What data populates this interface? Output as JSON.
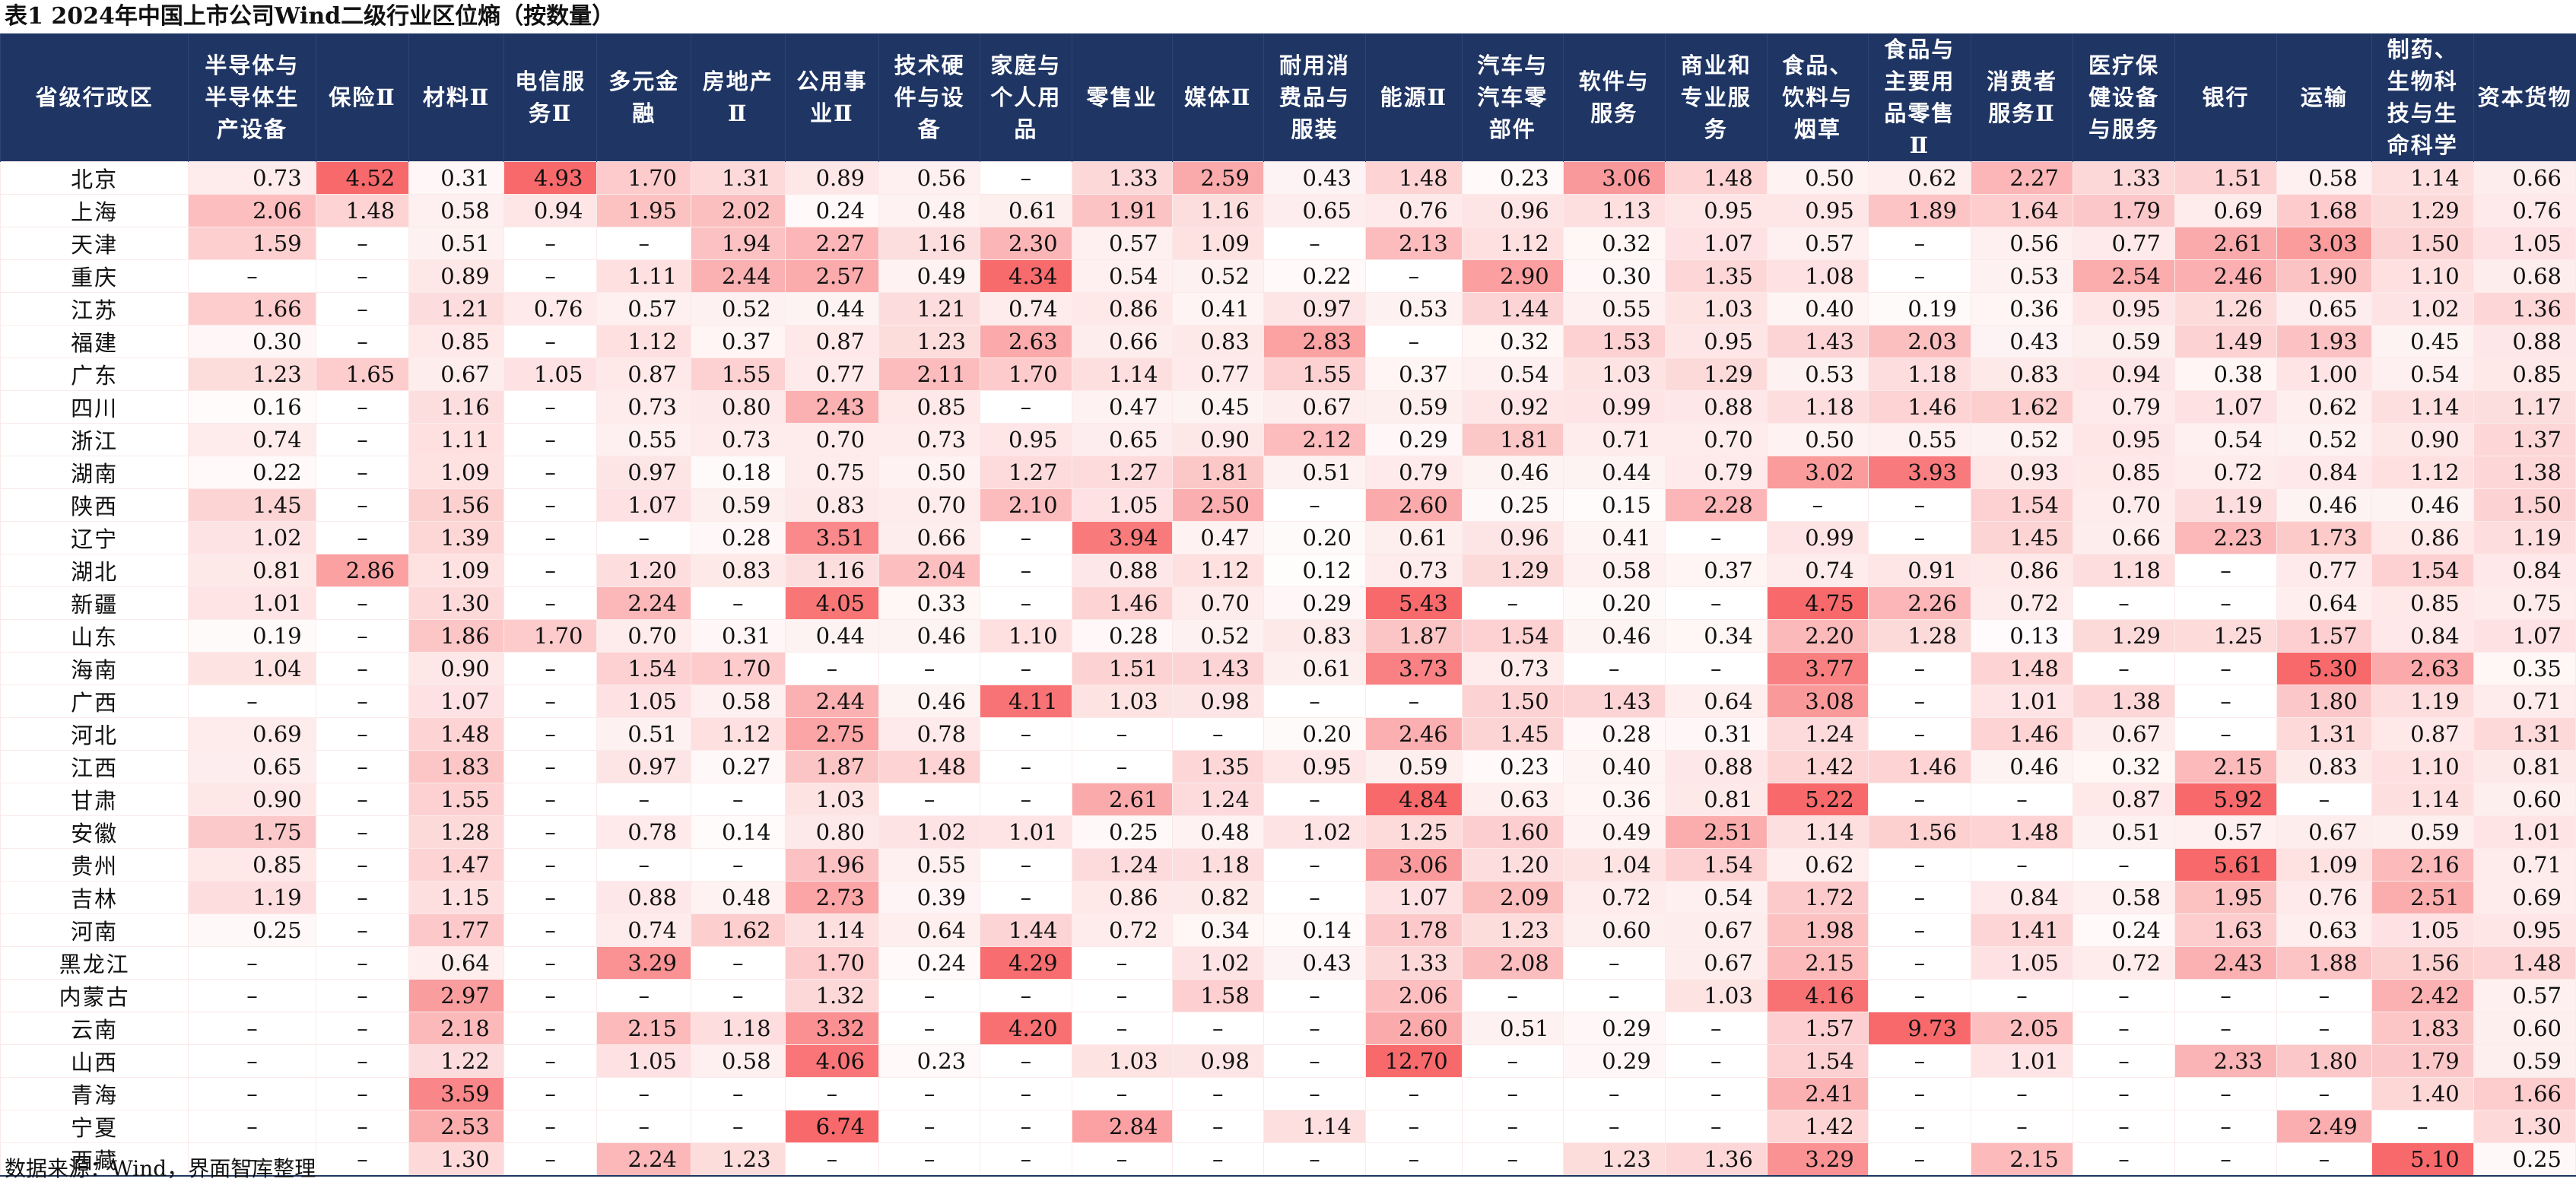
{
  "title": "表1 2024年中国上市公司Wind二级行业区位熵（按数量）",
  "source": "数据来源：Wind，界面智库整理",
  "columns": [
    "省级行政区",
    "半导体与\n半导体生\n产设备",
    "保险Ⅱ",
    "材料Ⅱ",
    "电信服\n务Ⅱ",
    "多元金\n融",
    "房地产\nⅡ",
    "公用事\n业Ⅱ",
    "技术硬\n件与设\n备",
    "家庭与\n个人用\n品",
    "零售业",
    "媒体Ⅱ",
    "耐用消\n费品与\n服装",
    "能源Ⅱ",
    "汽车与\n汽车零\n部件",
    "软件与\n服务",
    "商业和\n专业服\n务",
    "食品、\n饮料与\n烟草",
    "食品与\n主要用\n品零售\nⅡ",
    "消费者\n服务Ⅱ",
    "医疗保\n健设备\n与服务",
    "银行",
    "运输",
    "制药、\n生物科\n技与生\n命科学",
    "资本货物"
  ],
  "rows": [
    {
      "name": "北京",
      "values": [
        "0.73",
        "4.52",
        "0.31",
        "4.93",
        "1.70",
        "1.31",
        "0.89",
        "0.56",
        "–",
        "1.33",
        "2.59",
        "0.43",
        "1.48",
        "0.23",
        "3.06",
        "1.48",
        "0.50",
        "0.62",
        "2.27",
        "1.33",
        "1.51",
        "0.58",
        "1.14",
        "0.66"
      ]
    },
    {
      "name": "上海",
      "values": [
        "2.06",
        "1.48",
        "0.58",
        "0.94",
        "1.95",
        "2.02",
        "0.24",
        "0.48",
        "0.61",
        "1.91",
        "1.16",
        "0.65",
        "0.76",
        "0.96",
        "1.13",
        "0.95",
        "0.95",
        "1.89",
        "1.64",
        "1.79",
        "0.69",
        "1.68",
        "1.29",
        "0.76"
      ]
    },
    {
      "name": "天津",
      "values": [
        "1.59",
        "–",
        "0.51",
        "–",
        "–",
        "1.94",
        "2.27",
        "1.16",
        "2.30",
        "0.57",
        "1.09",
        "–",
        "2.13",
        "1.12",
        "0.32",
        "1.07",
        "0.57",
        "–",
        "0.56",
        "0.77",
        "2.61",
        "3.03",
        "1.50",
        "1.05"
      ]
    },
    {
      "name": "重庆",
      "values": [
        "–",
        "–",
        "0.89",
        "–",
        "1.11",
        "2.44",
        "2.57",
        "0.49",
        "4.34",
        "0.54",
        "0.52",
        "0.22",
        "–",
        "2.90",
        "0.30",
        "1.35",
        "1.08",
        "–",
        "0.53",
        "2.54",
        "2.46",
        "1.90",
        "1.10",
        "0.68"
      ]
    },
    {
      "name": "江苏",
      "values": [
        "1.66",
        "–",
        "1.21",
        "0.76",
        "0.57",
        "0.52",
        "0.44",
        "1.21",
        "0.74",
        "0.86",
        "0.41",
        "0.97",
        "0.53",
        "1.44",
        "0.55",
        "1.03",
        "0.40",
        "0.19",
        "0.36",
        "0.95",
        "1.26",
        "0.65",
        "1.02",
        "1.36"
      ]
    },
    {
      "name": "福建",
      "values": [
        "0.30",
        "–",
        "0.85",
        "–",
        "1.12",
        "0.37",
        "0.87",
        "1.23",
        "2.63",
        "0.66",
        "0.83",
        "2.83",
        "–",
        "0.32",
        "1.53",
        "0.95",
        "1.43",
        "2.03",
        "0.43",
        "0.59",
        "1.49",
        "1.93",
        "0.45",
        "0.88"
      ]
    },
    {
      "name": "广东",
      "values": [
        "1.23",
        "1.65",
        "0.67",
        "1.05",
        "0.87",
        "1.55",
        "0.77",
        "2.11",
        "1.70",
        "1.14",
        "0.77",
        "1.55",
        "0.37",
        "0.54",
        "1.03",
        "1.29",
        "0.53",
        "1.18",
        "0.83",
        "0.94",
        "0.38",
        "1.00",
        "0.54",
        "0.85"
      ]
    },
    {
      "name": "四川",
      "values": [
        "0.16",
        "–",
        "1.16",
        "–",
        "0.73",
        "0.80",
        "2.43",
        "0.85",
        "–",
        "0.47",
        "0.45",
        "0.67",
        "0.59",
        "0.92",
        "0.99",
        "0.88",
        "1.18",
        "1.46",
        "1.62",
        "0.79",
        "1.07",
        "0.62",
        "1.14",
        "1.17"
      ]
    },
    {
      "name": "浙江",
      "values": [
        "0.74",
        "–",
        "1.11",
        "–",
        "0.55",
        "0.73",
        "0.70",
        "0.73",
        "0.95",
        "0.65",
        "0.90",
        "2.12",
        "0.29",
        "1.81",
        "0.71",
        "0.70",
        "0.50",
        "0.55",
        "0.52",
        "0.95",
        "0.54",
        "0.52",
        "0.90",
        "1.37"
      ]
    },
    {
      "name": "湖南",
      "values": [
        "0.22",
        "–",
        "1.09",
        "–",
        "0.97",
        "0.18",
        "0.75",
        "0.50",
        "1.27",
        "1.27",
        "1.81",
        "0.51",
        "0.79",
        "0.46",
        "0.44",
        "0.79",
        "3.02",
        "3.93",
        "0.93",
        "0.85",
        "0.72",
        "0.84",
        "1.12",
        "1.38"
      ]
    },
    {
      "name": "陕西",
      "values": [
        "1.45",
        "–",
        "1.56",
        "–",
        "1.07",
        "0.59",
        "0.83",
        "0.70",
        "2.10",
        "1.05",
        "2.50",
        "–",
        "2.60",
        "0.25",
        "0.15",
        "2.28",
        "–",
        "–",
        "1.54",
        "0.70",
        "1.19",
        "0.46",
        "0.46",
        "1.50"
      ]
    },
    {
      "name": "辽宁",
      "values": [
        "1.02",
        "–",
        "1.39",
        "–",
        "–",
        "0.28",
        "3.51",
        "0.66",
        "–",
        "3.94",
        "0.47",
        "0.20",
        "0.61",
        "0.96",
        "0.41",
        "–",
        "0.99",
        "–",
        "1.45",
        "0.66",
        "2.23",
        "1.73",
        "0.86",
        "1.19"
      ]
    },
    {
      "name": "湖北",
      "values": [
        "0.81",
        "2.86",
        "1.09",
        "–",
        "1.20",
        "0.83",
        "1.16",
        "2.04",
        "–",
        "0.88",
        "1.12",
        "0.12",
        "0.73",
        "1.29",
        "0.58",
        "0.37",
        "0.74",
        "0.91",
        "0.86",
        "1.18",
        "–",
        "0.77",
        "1.54",
        "0.84"
      ]
    },
    {
      "name": "新疆",
      "values": [
        "1.01",
        "–",
        "1.30",
        "–",
        "2.24",
        "–",
        "4.05",
        "0.33",
        "–",
        "1.46",
        "0.70",
        "0.29",
        "5.43",
        "–",
        "0.20",
        "–",
        "4.75",
        "2.26",
        "0.72",
        "–",
        "–",
        "0.64",
        "0.85",
        "0.75"
      ]
    },
    {
      "name": "山东",
      "values": [
        "0.19",
        "–",
        "1.86",
        "1.70",
        "0.70",
        "0.31",
        "0.44",
        "0.46",
        "1.10",
        "0.28",
        "0.52",
        "0.83",
        "1.87",
        "1.54",
        "0.46",
        "0.34",
        "2.20",
        "1.28",
        "0.13",
        "1.29",
        "1.25",
        "1.57",
        "0.84",
        "1.07"
      ]
    },
    {
      "name": "海南",
      "values": [
        "1.04",
        "–",
        "0.90",
        "–",
        "1.54",
        "1.70",
        "–",
        "–",
        "–",
        "1.51",
        "1.43",
        "0.61",
        "3.73",
        "0.73",
        "–",
        "–",
        "3.77",
        "–",
        "1.48",
        "–",
        "–",
        "5.30",
        "2.63",
        "0.35"
      ]
    },
    {
      "name": "广西",
      "values": [
        "–",
        "–",
        "1.07",
        "–",
        "1.05",
        "0.58",
        "2.44",
        "0.46",
        "4.11",
        "1.03",
        "0.98",
        "–",
        "–",
        "1.50",
        "1.43",
        "0.64",
        "3.08",
        "–",
        "1.01",
        "1.38",
        "–",
        "1.80",
        "1.19",
        "0.71"
      ]
    },
    {
      "name": "河北",
      "values": [
        "0.69",
        "–",
        "1.48",
        "–",
        "0.51",
        "1.12",
        "2.75",
        "0.78",
        "–",
        "–",
        "–",
        "0.20",
        "2.46",
        "1.45",
        "0.28",
        "0.31",
        "1.24",
        "–",
        "1.46",
        "0.67",
        "–",
        "1.31",
        "0.87",
        "1.31"
      ]
    },
    {
      "name": "江西",
      "values": [
        "0.65",
        "–",
        "1.83",
        "–",
        "0.97",
        "0.27",
        "1.87",
        "1.48",
        "–",
        "–",
        "1.35",
        "0.95",
        "0.59",
        "0.23",
        "0.40",
        "0.88",
        "1.42",
        "1.46",
        "0.46",
        "0.32",
        "2.15",
        "0.83",
        "1.10",
        "0.81"
      ]
    },
    {
      "name": "甘肃",
      "values": [
        "0.90",
        "–",
        "1.55",
        "–",
        "–",
        "–",
        "1.03",
        "–",
        "–",
        "2.61",
        "1.24",
        "–",
        "4.84",
        "0.63",
        "0.36",
        "0.81",
        "5.22",
        "–",
        "–",
        "0.87",
        "5.92",
        "–",
        "1.14",
        "0.60"
      ]
    },
    {
      "name": "安徽",
      "values": [
        "1.75",
        "–",
        "1.28",
        "–",
        "0.78",
        "0.14",
        "0.80",
        "1.02",
        "1.01",
        "0.25",
        "0.48",
        "1.02",
        "1.25",
        "1.60",
        "0.49",
        "2.51",
        "1.14",
        "1.56",
        "1.48",
        "0.51",
        "0.57",
        "0.67",
        "0.59",
        "1.01"
      ]
    },
    {
      "name": "贵州",
      "values": [
        "0.85",
        "–",
        "1.47",
        "–",
        "–",
        "–",
        "1.96",
        "0.55",
        "–",
        "1.24",
        "1.18",
        "–",
        "3.06",
        "1.20",
        "1.04",
        "1.54",
        "0.62",
        "–",
        "–",
        "–",
        "5.61",
        "1.09",
        "2.16",
        "0.71"
      ]
    },
    {
      "name": "吉林",
      "values": [
        "1.19",
        "–",
        "1.15",
        "–",
        "0.88",
        "0.48",
        "2.73",
        "0.39",
        "–",
        "0.86",
        "0.82",
        "–",
        "1.07",
        "2.09",
        "0.72",
        "0.54",
        "1.72",
        "–",
        "0.84",
        "0.58",
        "1.95",
        "0.76",
        "2.51",
        "0.69"
      ]
    },
    {
      "name": "河南",
      "values": [
        "0.25",
        "–",
        "1.77",
        "–",
        "0.74",
        "1.62",
        "1.14",
        "0.64",
        "1.44",
        "0.72",
        "0.34",
        "0.14",
        "1.78",
        "1.23",
        "0.60",
        "0.67",
        "1.98",
        "–",
        "1.41",
        "0.24",
        "1.63",
        "0.63",
        "1.05",
        "0.95"
      ]
    },
    {
      "name": "黑龙江",
      "values": [
        "–",
        "–",
        "0.64",
        "–",
        "3.29",
        "–",
        "1.70",
        "0.24",
        "4.29",
        "–",
        "1.02",
        "0.43",
        "1.33",
        "2.08",
        "–",
        "0.67",
        "2.15",
        "–",
        "1.05",
        "0.72",
        "2.43",
        "1.88",
        "1.56",
        "1.48"
      ]
    },
    {
      "name": "内蒙古",
      "values": [
        "–",
        "–",
        "2.97",
        "–",
        "–",
        "–",
        "1.32",
        "–",
        "–",
        "–",
        "1.58",
        "–",
        "2.06",
        "–",
        "–",
        "1.03",
        "4.16",
        "–",
        "–",
        "–",
        "–",
        "–",
        "2.42",
        "0.57"
      ]
    },
    {
      "name": "云南",
      "values": [
        "–",
        "–",
        "2.18",
        "–",
        "2.15",
        "1.18",
        "3.32",
        "–",
        "4.20",
        "–",
        "–",
        "–",
        "2.60",
        "0.51",
        "0.29",
        "–",
        "1.57",
        "9.73",
        "2.05",
        "–",
        "–",
        "–",
        "1.83",
        "0.60"
      ]
    },
    {
      "name": "山西",
      "values": [
        "–",
        "–",
        "1.22",
        "–",
        "1.05",
        "0.58",
        "4.06",
        "0.23",
        "–",
        "1.03",
        "0.98",
        "–",
        "12.70",
        "–",
        "0.29",
        "–",
        "1.54",
        "–",
        "1.01",
        "–",
        "2.33",
        "1.80",
        "1.79",
        "0.59"
      ]
    },
    {
      "name": "青海",
      "values": [
        "–",
        "–",
        "3.59",
        "–",
        "–",
        "–",
        "–",
        "–",
        "–",
        "–",
        "–",
        "–",
        "–",
        "–",
        "–",
        "–",
        "2.41",
        "–",
        "–",
        "–",
        "–",
        "–",
        "1.40",
        "1.66"
      ]
    },
    {
      "name": "宁夏",
      "values": [
        "–",
        "–",
        "2.53",
        "–",
        "–",
        "–",
        "6.74",
        "–",
        "–",
        "2.84",
        "–",
        "1.14",
        "–",
        "–",
        "–",
        "–",
        "1.42",
        "–",
        "–",
        "–",
        "–",
        "2.49",
        "–",
        "1.30"
      ]
    },
    {
      "name": "西藏",
      "values": [
        "–",
        "–",
        "1.30",
        "–",
        "2.24",
        "1.23",
        "–",
        "–",
        "–",
        "–",
        "–",
        "–",
        "–",
        "–",
        "1.23",
        "1.36",
        "3.29",
        "–",
        "2.15",
        "–",
        "–",
        "–",
        "5.10",
        "0.25"
      ]
    }
  ],
  "colors": {
    "header_bg": "#1f3564",
    "header_text": "#ffffff",
    "heat_low": "#ffffff",
    "heat_high": "#f8696b"
  }
}
